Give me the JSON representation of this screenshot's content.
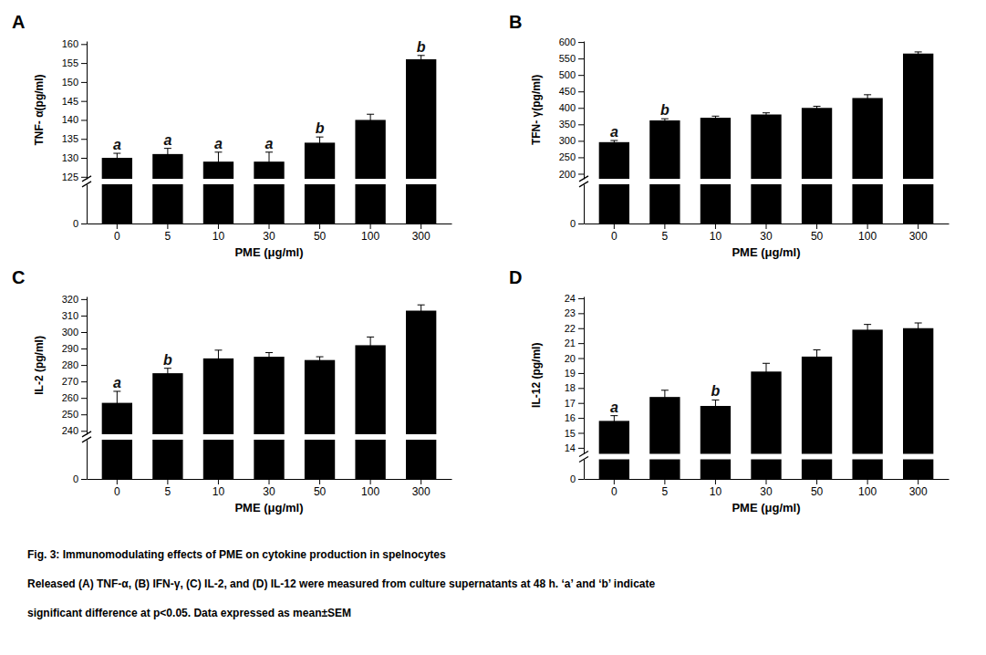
{
  "chart_data": [
    {
      "type": "bar",
      "title": "A",
      "categories": [
        "0",
        "5",
        "10",
        "30",
        "50",
        "100",
        "300"
      ],
      "values": [
        130.0,
        131.0,
        129.0,
        129.0,
        134.0,
        140.0,
        156.0
      ],
      "errors": [
        1.2,
        1.5,
        2.5,
        2.5,
        1.5,
        1.5,
        1.0
      ],
      "annotations": [
        "a",
        "a",
        "a",
        "a",
        "b",
        null,
        "b"
      ],
      "color": "#000000",
      "xlabel": "PME (μg/ml)",
      "ylabel": "TNF- α(pg/ml)",
      "ylim": [
        124.5,
        160.8
      ],
      "yticks": [
        125,
        130,
        135,
        140,
        145,
        150,
        155,
        160
      ],
      "lower_ylim": [
        0,
        124.5
      ],
      "lower_yticks": [
        0
      ],
      "grid": false
    },
    {
      "type": "bar",
      "title": "B",
      "categories": [
        "0",
        "5",
        "10",
        "30",
        "50",
        "100",
        "300"
      ],
      "values": [
        296.0,
        362.0,
        370.0,
        380.0,
        400.0,
        430.0,
        565.0
      ],
      "errors": [
        5.0,
        5.0,
        5.0,
        5.0,
        5.0,
        10.0,
        5.0
      ],
      "annotations": [
        "a",
        "b",
        null,
        null,
        null,
        null,
        null
      ],
      "color": "#000000",
      "xlabel": "PME (μg/ml)",
      "ylabel": "TFN- γ(pg/ml)",
      "ylim": [
        185,
        603
      ],
      "yticks": [
        200,
        250,
        300,
        350,
        400,
        450,
        500,
        550,
        600
      ],
      "lower_ylim": [
        0,
        185
      ],
      "lower_yticks": [
        0
      ],
      "grid": false
    },
    {
      "type": "bar",
      "title": "C",
      "categories": [
        "0",
        "5",
        "10",
        "30",
        "50",
        "100",
        "300"
      ],
      "values": [
        257.0,
        275.0,
        284.0,
        285.0,
        283.0,
        292.0,
        313.0
      ],
      "errors": [
        7.0,
        3.0,
        5.0,
        2.5,
        2.0,
        5.0,
        3.5
      ],
      "annotations": [
        "a",
        "b",
        null,
        null,
        null,
        null,
        null
      ],
      "color": "#000000",
      "xlabel": "PME (μg/ml)",
      "ylabel": "IL-2 (pg/ml)",
      "ylim": [
        238,
        321.6
      ],
      "yticks": [
        240,
        250,
        260,
        270,
        280,
        290,
        300,
        310,
        320
      ],
      "lower_ylim": [
        0,
        238
      ],
      "lower_yticks": [
        0
      ],
      "grid": false
    },
    {
      "type": "bar",
      "title": "D",
      "categories": [
        "0",
        "5",
        "10",
        "30",
        "50",
        "100",
        "300"
      ],
      "values": [
        15.8,
        17.4,
        16.8,
        19.1,
        20.1,
        21.9,
        22.0
      ],
      "errors": [
        0.35,
        0.45,
        0.4,
        0.55,
        0.45,
        0.35,
        0.35
      ],
      "annotations": [
        "a",
        null,
        "b",
        null,
        null,
        null,
        null
      ],
      "color": "#000000",
      "xlabel": "PME (μg/ml)",
      "ylabel": "IL-12 (pg/ml)",
      "ylim": [
        13.6,
        24.12
      ],
      "yticks": [
        14,
        15,
        16,
        17,
        18,
        19,
        20,
        21,
        22,
        23,
        24
      ],
      "lower_ylim": [
        0,
        13.6
      ],
      "lower_yticks": [
        0
      ],
      "grid": false
    }
  ],
  "caption": [
    "Fig. 3: Immunomodulating effects of PME on cytokine production in spelnocytes",
    "Released (A) TNF-α, (B) IFN-γ, (C) IL-2, and (D) IL-12 were measured from culture supernatants at 48 h. ‘a’ and ‘b’ indicate",
    "significant difference at p<0.05. Data expressed as mean±SEM"
  ]
}
